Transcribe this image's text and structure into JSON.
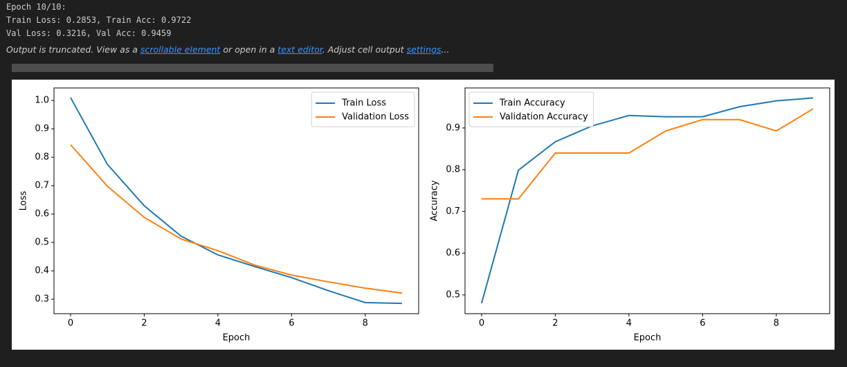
{
  "output_lines": [
    "Epoch 10/10:",
    "Train Loss: 0.2853, Train Acc: 0.9722",
    "Val Loss: 0.3216, Val Acc: 0.9459"
  ],
  "notice": [
    "Output is truncated. View as a ",
    "scrollable element",
    " or open in a ",
    "text editor",
    ". Adjust cell output ",
    "settings",
    "..."
  ],
  "chart_data": [
    {
      "type": "line",
      "xlabel": "Epoch",
      "ylabel": "Loss",
      "legend": "upper right",
      "x": [
        0,
        1,
        2,
        3,
        4,
        5,
        6,
        7,
        8,
        9
      ],
      "series": [
        {
          "name": "Train Loss",
          "color": "#1f77b4",
          "values": [
            1.01,
            0.775,
            0.629,
            0.522,
            0.456,
            0.415,
            0.376,
            0.33,
            0.288,
            0.2853
          ]
        },
        {
          "name": "Validation Loss",
          "color": "#ff7f0e",
          "values": [
            0.844,
            0.698,
            0.588,
            0.512,
            0.471,
            0.42,
            0.385,
            0.361,
            0.339,
            0.3216
          ]
        }
      ],
      "xlim": [
        -0.45,
        9.45
      ],
      "ylim": [
        0.249,
        1.044
      ],
      "xticks": [
        0,
        2,
        4,
        6,
        8
      ],
      "yticks": [
        0.3,
        0.4,
        0.5,
        0.6,
        0.7,
        0.8,
        0.9,
        {
          "value": 1,
          "label": "1.0"
        }
      ]
    },
    {
      "type": "line",
      "xlabel": "Epoch",
      "ylabel": "Accuracy",
      "legend": "upper left",
      "x": [
        0,
        1,
        2,
        3,
        4,
        5,
        6,
        7,
        8,
        9
      ],
      "series": [
        {
          "name": "Train Accuracy",
          "color": "#1f77b4",
          "values": [
            0.48,
            0.799,
            0.867,
            0.905,
            0.93,
            0.927,
            0.927,
            0.951,
            0.965,
            0.9722
          ]
        },
        {
          "name": "Validation Accuracy",
          "color": "#ff7f0e",
          "values": [
            0.73,
            0.73,
            0.84,
            0.84,
            0.84,
            0.893,
            0.92,
            0.92,
            0.893,
            0.9459
          ]
        }
      ],
      "xlim": [
        -0.45,
        9.45
      ],
      "ylim": [
        0.455,
        0.996
      ],
      "xticks": [
        0,
        2,
        4,
        6,
        8
      ],
      "yticks": [
        0.5,
        0.6,
        0.7,
        0.8,
        0.9
      ]
    }
  ]
}
